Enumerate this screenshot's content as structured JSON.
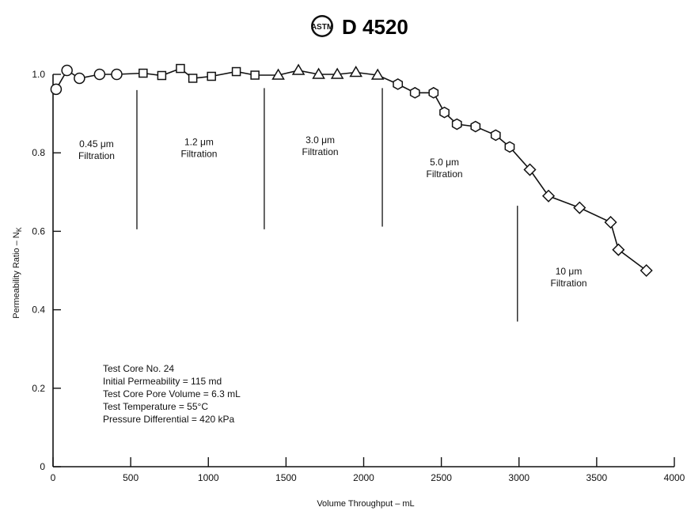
{
  "header": {
    "logo_text": "ASTM",
    "doc_number": "D 4520"
  },
  "chart_data": {
    "type": "line",
    "title": "",
    "xlabel": "Volume Throughput – mL",
    "ylabel": "Permeability Ratio – N",
    "ylabel_subscript": "K",
    "xlim": [
      0,
      4000
    ],
    "ylim": [
      0,
      1.0
    ],
    "x_ticks": [
      "0",
      "500",
      "1000",
      "1500",
      "2000",
      "2500",
      "3000",
      "3500",
      "4000"
    ],
    "y_ticks": [
      "0",
      "0.2",
      "0.4",
      "0.6",
      "0.8",
      "1.0"
    ],
    "grid": false,
    "marker_groups": [
      {
        "marker": "circle",
        "points": [
          [
            20,
            0.962
          ],
          [
            90,
            1.01
          ],
          [
            170,
            0.99
          ],
          [
            300,
            1.0
          ],
          [
            410,
            1.0
          ]
        ]
      },
      {
        "marker": "square",
        "points": [
          [
            580,
            1.003
          ],
          [
            700,
            0.997
          ],
          [
            820,
            1.015
          ],
          [
            900,
            0.99
          ],
          [
            1020,
            0.995
          ],
          [
            1180,
            1.007
          ],
          [
            1300,
            0.998
          ]
        ]
      },
      {
        "marker": "triangle",
        "points": [
          [
            1450,
            0.998
          ],
          [
            1580,
            1.01
          ],
          [
            1710,
            1.0
          ],
          [
            1830,
            1.0
          ],
          [
            1950,
            1.005
          ],
          [
            2090,
            0.998
          ]
        ]
      },
      {
        "marker": "hexagon",
        "points": [
          [
            2220,
            0.975
          ],
          [
            2330,
            0.953
          ],
          [
            2450,
            0.953
          ],
          [
            2520,
            0.903
          ],
          [
            2600,
            0.873
          ],
          [
            2720,
            0.867
          ],
          [
            2850,
            0.845
          ],
          [
            2940,
            0.815
          ]
        ]
      },
      {
        "marker": "diamond",
        "points": [
          [
            3070,
            0.757
          ],
          [
            3190,
            0.69
          ],
          [
            3390,
            0.66
          ],
          [
            3590,
            0.623
          ],
          [
            3640,
            0.553
          ],
          [
            3820,
            0.5
          ]
        ]
      }
    ],
    "region_boundaries": [
      {
        "x": 540,
        "y_from": 0.605,
        "y_to": 0.96
      },
      {
        "x": 1360,
        "y_from": 0.605,
        "y_to": 0.965
      },
      {
        "x": 2120,
        "y_from": 0.612,
        "y_to": 0.965
      },
      {
        "x": 2990,
        "y_from": 0.37,
        "y_to": 0.665
      }
    ],
    "region_labels": [
      {
        "size": "0.45 μm",
        "x": 280,
        "y": 0.815
      },
      {
        "size": "1.2 μm",
        "x": 940,
        "y": 0.82
      },
      {
        "size": "3.0 μm",
        "x": 1720,
        "y": 0.825
      },
      {
        "size": "5.0 μm",
        "x": 2520,
        "y": 0.768
      },
      {
        "size": "10 μm",
        "x": 3320,
        "y": 0.49
      }
    ],
    "region_word": "Filtration",
    "annotations": [
      "Test Core No. 24",
      "Initial Permeability = 115 md",
      "Test Core Pore Volume = 6.3 mL",
      "Test Temperature = 55°C",
      "Pressure Differential = 420 kPa"
    ]
  }
}
